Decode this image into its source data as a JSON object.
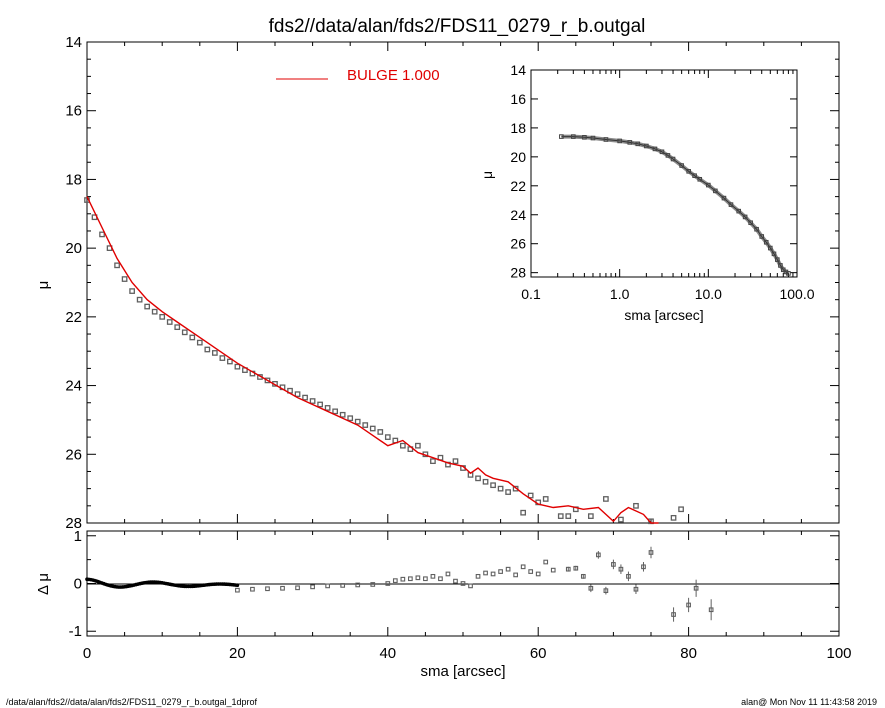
{
  "title": "fds2//data/alan/fds2/FDS11_0279_r_b.outgal",
  "footer": {
    "left": "/data/alan/fds2//data/alan/fds2/FDS11_0279_r_b.outgal_1dprof",
    "right": "alan@  Mon Nov 11 11:43:58 2019"
  },
  "colors": {
    "model": "#e00000",
    "data": "#606060",
    "axes": "#000000"
  },
  "chart_data": [
    {
      "type": "scatter",
      "id": "main_profile",
      "xlabel": "",
      "ylabel": "μ",
      "xlim": [
        0,
        100
      ],
      "ylim": [
        28,
        14
      ],
      "x_ticks": [],
      "y_ticks": [
        "14",
        "16",
        "18",
        "20",
        "22",
        "24",
        "26",
        "28"
      ],
      "legend": {
        "label": "BULGE  1.000",
        "placement": "top-center"
      },
      "series": [
        {
          "name": "BULGE  1.000",
          "kind": "line",
          "x": [
            0,
            2,
            4,
            6,
            8,
            10,
            12,
            14,
            16,
            18,
            20,
            22,
            24,
            26,
            28,
            30,
            32,
            34,
            36,
            38,
            40,
            42,
            44,
            46,
            48,
            50,
            51,
            52,
            53,
            54,
            56,
            58,
            60,
            62,
            64,
            66,
            68,
            70,
            71,
            72,
            74,
            75,
            76
          ],
          "y": [
            18.5,
            19.4,
            20.3,
            21.0,
            21.5,
            21.85,
            22.15,
            22.45,
            22.75,
            23.05,
            23.35,
            23.6,
            23.85,
            24.1,
            24.35,
            24.55,
            24.75,
            24.95,
            25.15,
            25.45,
            25.75,
            25.6,
            25.95,
            26.1,
            26.25,
            26.35,
            26.55,
            26.4,
            26.6,
            26.7,
            26.8,
            27.15,
            27.45,
            27.55,
            27.5,
            27.6,
            27.55,
            27.95,
            27.7,
            27.55,
            27.75,
            28.1,
            28.4
          ]
        },
        {
          "name": "",
          "kind": "markers",
          "x": [
            0,
            1,
            2,
            3,
            4,
            5,
            6,
            7,
            8,
            9,
            10,
            11,
            12,
            13,
            14,
            15,
            16,
            17,
            18,
            19,
            20,
            21,
            22,
            23,
            24,
            25,
            26,
            27,
            28,
            29,
            30,
            31,
            32,
            33,
            34,
            35,
            36,
            37,
            38,
            39,
            40,
            41,
            42,
            43,
            44,
            45,
            46,
            47,
            48,
            49,
            50,
            51,
            52,
            53,
            54,
            55,
            56,
            57,
            58,
            59,
            60,
            61,
            63,
            64,
            65,
            67,
            69,
            71,
            73,
            75,
            76,
            78,
            79
          ],
          "y": [
            18.6,
            19.1,
            19.6,
            20.0,
            20.5,
            20.9,
            21.25,
            21.5,
            21.7,
            21.85,
            22.0,
            22.15,
            22.3,
            22.45,
            22.6,
            22.75,
            22.95,
            23.05,
            23.2,
            23.3,
            23.45,
            23.55,
            23.65,
            23.75,
            23.85,
            23.95,
            24.05,
            24.15,
            24.25,
            24.35,
            24.45,
            24.55,
            24.65,
            24.75,
            24.85,
            24.95,
            25.05,
            25.15,
            25.25,
            25.35,
            25.5,
            25.6,
            25.75,
            25.85,
            25.75,
            26.0,
            26.2,
            26.1,
            26.3,
            26.2,
            26.4,
            26.6,
            26.7,
            26.8,
            26.9,
            27.0,
            27.1,
            27.0,
            27.7,
            27.2,
            27.4,
            27.3,
            27.8,
            27.8,
            27.6,
            27.8,
            27.3,
            27.9,
            27.5,
            27.95,
            28.05,
            27.85,
            27.6
          ]
        }
      ]
    },
    {
      "type": "scatter",
      "id": "residuals",
      "xlabel": "sma [arcsec]",
      "ylabel": "Δ μ",
      "xlim": [
        0,
        100
      ],
      "ylim": [
        -1.1,
        1.1
      ],
      "x_ticks": [
        "0",
        "20",
        "40",
        "60",
        "80",
        "100"
      ],
      "y_ticks": [
        "-1",
        "0",
        "1"
      ],
      "series": [
        {
          "name": "",
          "kind": "markers",
          "x": [
            20,
            22,
            24,
            26,
            28,
            30,
            32,
            34,
            36,
            38,
            40,
            41,
            42,
            43,
            44,
            45,
            46,
            47,
            48,
            49,
            50,
            51,
            52,
            53,
            54,
            55,
            56,
            57,
            58,
            59,
            60,
            61,
            62,
            64,
            65,
            66,
            67,
            68,
            69,
            70,
            71,
            72,
            73,
            74,
            75,
            78,
            80,
            81,
            83
          ],
          "y": [
            -0.14,
            -0.12,
            -0.11,
            -0.1,
            -0.09,
            -0.07,
            -0.05,
            -0.04,
            -0.03,
            -0.02,
            0.0,
            0.06,
            0.09,
            0.1,
            0.12,
            0.1,
            0.15,
            0.1,
            0.2,
            0.05,
            0.0,
            -0.05,
            0.15,
            0.22,
            0.2,
            0.25,
            0.3,
            0.18,
            0.35,
            0.25,
            0.2,
            0.45,
            0.28,
            0.3,
            0.32,
            0.15,
            -0.1,
            0.6,
            -0.15,
            0.4,
            0.3,
            0.15,
            -0.12,
            0.35,
            0.65,
            -0.65,
            -0.45,
            -0.1,
            -0.55
          ],
          "err": [
            0,
            0,
            0,
            0,
            0,
            0,
            0,
            0,
            0,
            0,
            0,
            0,
            0,
            0,
            0,
            0,
            0,
            0,
            0,
            0,
            0,
            0,
            0,
            0,
            0,
            0,
            0,
            0,
            0,
            0,
            0,
            0,
            0,
            0.05,
            0.05,
            0.05,
            0.08,
            0.08,
            0.08,
            0.1,
            0.1,
            0.1,
            0.1,
            0.1,
            0.12,
            0.15,
            0.15,
            0.18,
            0.22
          ]
        }
      ]
    },
    {
      "type": "scatter",
      "id": "inset_log_profile",
      "xlabel": "sma [arcsec]",
      "ylabel": "μ",
      "x_scale": "log",
      "xlim": [
        0.1,
        100
      ],
      "ylim": [
        28.3,
        14
      ],
      "x_ticks": [
        "0.1",
        "1.0",
        "10.0",
        "100.0"
      ],
      "y_ticks": [
        "14",
        "16",
        "18",
        "20",
        "22",
        "24",
        "26",
        "28"
      ],
      "series": [
        {
          "name": "",
          "kind": "markers",
          "x": [
            0.22,
            0.3,
            0.4,
            0.5,
            0.7,
            1.0,
            1.3,
            1.6,
            2.0,
            2.5,
            3.0,
            3.5,
            4.0,
            5.0,
            6.0,
            7.0,
            8.0,
            10.0,
            12.0,
            15.0,
            18.0,
            22.0,
            26.0,
            30.0,
            35.0,
            40.0,
            45.0,
            50.0,
            55.0,
            60.0,
            65.0,
            70.0,
            75.0,
            80.0
          ],
          "y": [
            18.6,
            18.6,
            18.65,
            18.7,
            18.8,
            18.9,
            19.0,
            19.1,
            19.25,
            19.45,
            19.65,
            19.9,
            20.15,
            20.6,
            21.0,
            21.3,
            21.55,
            21.95,
            22.35,
            22.85,
            23.3,
            23.75,
            24.15,
            24.55,
            25.0,
            25.5,
            25.9,
            26.3,
            26.7,
            27.1,
            27.5,
            27.8,
            27.95,
            28.05
          ]
        }
      ]
    }
  ]
}
